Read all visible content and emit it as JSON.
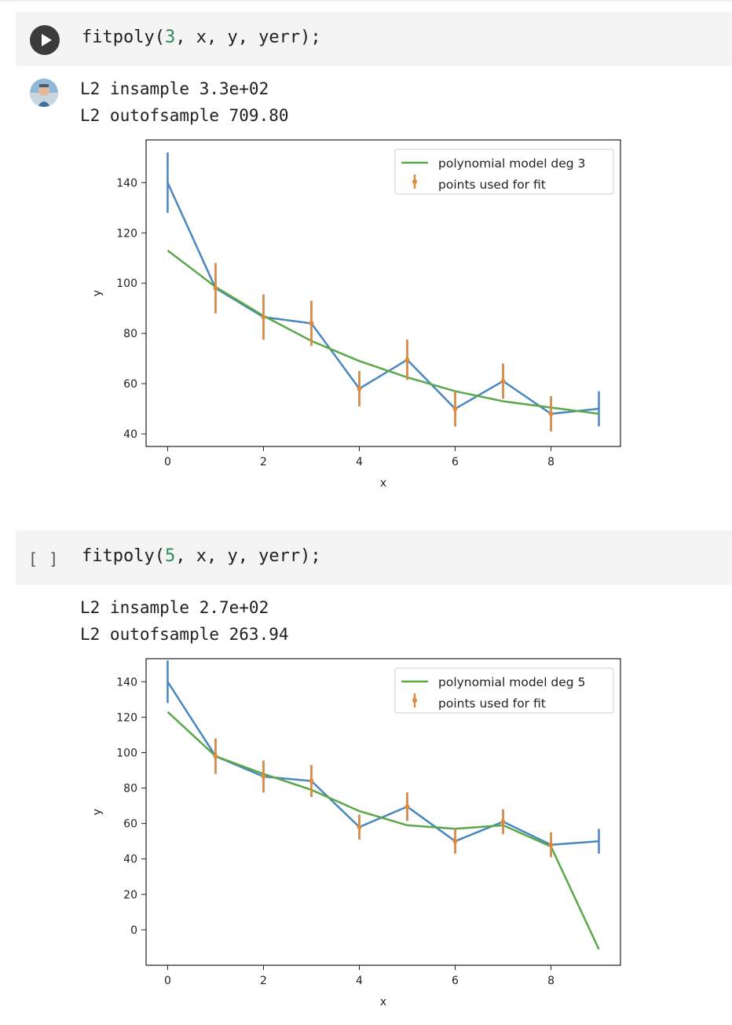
{
  "cells": [
    {
      "code": {
        "fn": "fitpoly(",
        "degree": "3",
        "rest": ", x, y, yerr);"
      },
      "output": [
        "L2 insample 3.3e+02",
        "L2 outofsample 709.80"
      ],
      "run_state": "run-button"
    },
    {
      "code": {
        "fn": "fitpoly(",
        "degree": "5",
        "rest": ", x, y, yerr);"
      },
      "bracket": "[ ]",
      "output": [
        "L2 insample 2.7e+02",
        "L2 outofsample 263.94"
      ]
    }
  ],
  "chart_data": [
    {
      "type": "line",
      "xlabel": "x",
      "ylabel": "y",
      "xlim": [
        -0.45,
        9.45
      ],
      "ylim": [
        35,
        157
      ],
      "xticks": [
        0,
        2,
        4,
        6,
        8
      ],
      "yticks": [
        40,
        60,
        80,
        100,
        120,
        140
      ],
      "legend_position": "upper right",
      "grid": false,
      "series": [
        {
          "name": "polynomial model deg 3",
          "color": "#5aa84a",
          "role": "model",
          "x": [
            0,
            1,
            2,
            3,
            4,
            5,
            6,
            7,
            8,
            9
          ],
          "y": [
            113,
            98.5,
            87,
            77,
            69,
            62.5,
            57,
            53,
            50.5,
            48
          ]
        },
        {
          "color": "#4a86c0",
          "role": "data-line-with-errorbars",
          "x": [
            0,
            1,
            2,
            3,
            4,
            5,
            6,
            7,
            8,
            9
          ],
          "y": [
            140,
            98,
            86.5,
            84,
            58,
            69.5,
            50,
            61,
            48,
            50
          ],
          "yerr": [
            12,
            10,
            9,
            9,
            7,
            8,
            7,
            7,
            7,
            7
          ]
        },
        {
          "name": "points used for fit",
          "color": "#e08a3c",
          "role": "fit-points",
          "x": [
            1,
            2,
            3,
            4,
            5,
            6,
            7,
            8
          ],
          "y": [
            98,
            86.5,
            84,
            58,
            69.5,
            50,
            61,
            48
          ],
          "yerr": [
            10,
            9,
            9,
            7,
            8,
            7,
            7,
            7
          ]
        }
      ]
    },
    {
      "type": "line",
      "xlabel": "x",
      "ylabel": "y",
      "xlim": [
        -0.45,
        9.45
      ],
      "ylim": [
        -20,
        153
      ],
      "xticks": [
        0,
        2,
        4,
        6,
        8
      ],
      "yticks": [
        0,
        20,
        40,
        60,
        80,
        100,
        120,
        140
      ],
      "legend_position": "upper right",
      "grid": false,
      "series": [
        {
          "name": "polynomial model deg 5",
          "color": "#5aa84a",
          "role": "model",
          "x": [
            0,
            1,
            2,
            3,
            4,
            5,
            6,
            7,
            8,
            9
          ],
          "y": [
            123,
            98,
            88,
            79,
            67,
            59,
            57,
            59,
            47,
            -11
          ]
        },
        {
          "color": "#4a86c0",
          "role": "data-line-with-errorbars",
          "x": [
            0,
            1,
            2,
            3,
            4,
            5,
            6,
            7,
            8,
            9
          ],
          "y": [
            140,
            98,
            86.5,
            84,
            58,
            69.5,
            50,
            61,
            48,
            50
          ],
          "yerr": [
            12,
            10,
            9,
            9,
            7,
            8,
            7,
            7,
            7,
            7
          ]
        },
        {
          "name": "points used for fit",
          "color": "#e08a3c",
          "role": "fit-points",
          "x": [
            1,
            2,
            3,
            4,
            5,
            6,
            7,
            8
          ],
          "y": [
            98,
            86.5,
            84,
            58,
            69.5,
            50,
            61,
            48
          ],
          "yerr": [
            10,
            9,
            9,
            7,
            8,
            7,
            7,
            7
          ]
        }
      ]
    }
  ]
}
